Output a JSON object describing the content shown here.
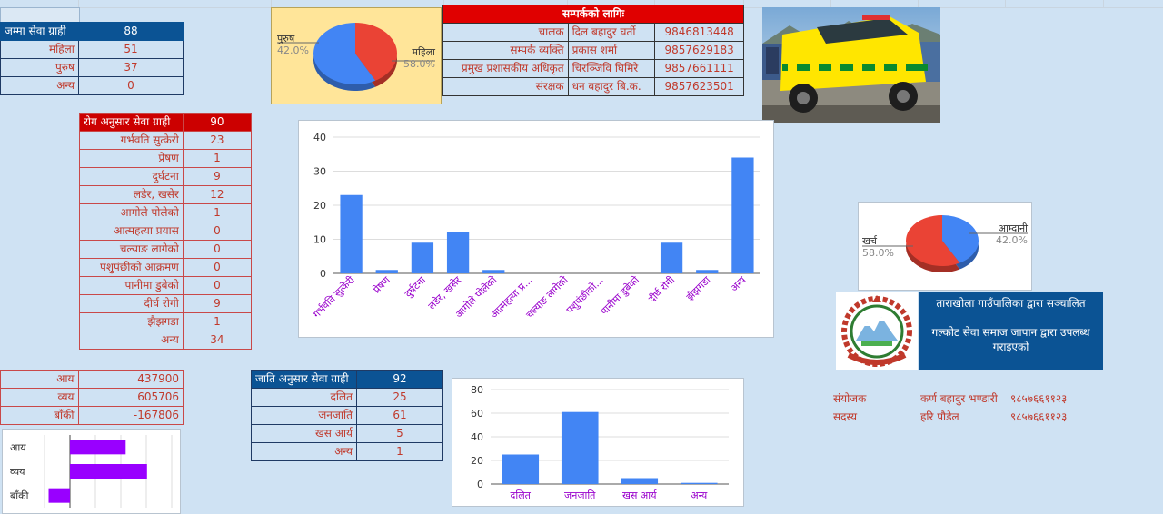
{
  "totals": {
    "rows": [
      {
        "label": "जम्मा सेवा ग्राही",
        "value": "88"
      },
      {
        "label": "महिला",
        "value": "51"
      },
      {
        "label": "पुरुष",
        "value": "37"
      },
      {
        "label": "अन्य",
        "value": "0"
      }
    ]
  },
  "gender_pie": {
    "slices": [
      {
        "label": "पुरुष",
        "pct": "42.0%",
        "value": 42.0,
        "color": "#ea4335"
      },
      {
        "label": "महिला",
        "pct": "58.0%",
        "value": 58.0,
        "color": "#4285f4"
      }
    ]
  },
  "contacts": {
    "title": "सम्पर्कको लागिः",
    "rows": [
      {
        "role": "चालक",
        "name": "दिल बहादुर घर्ती",
        "phone": "9846813448"
      },
      {
        "role": "सम्पर्क व्यक्ति",
        "name": "प्रकास शर्मा",
        "phone": "9857629183"
      },
      {
        "role": "प्रमुख प्रशासकीय अधिकृत",
        "name": "चिरञ्जिवि घिमिरे",
        "phone": "9857661111"
      },
      {
        "role": "संरक्षक",
        "name": "धन बहादुर बि.क.",
        "phone": "9857623501"
      }
    ]
  },
  "disease": {
    "header": {
      "label": "रोग अनुसार सेवा ग्राही",
      "value": "90"
    },
    "rows": [
      {
        "label": "गर्भवति सुत्केरी",
        "value": "23"
      },
      {
        "label": "प्रेषण",
        "value": "1"
      },
      {
        "label": "दुर्घटना",
        "value": "9"
      },
      {
        "label": "लडेर, खसेर",
        "value": "12"
      },
      {
        "label": "आगोले पोलेको",
        "value": "1"
      },
      {
        "label": "आत्महत्या प्रयास",
        "value": "0"
      },
      {
        "label": "चल्याङ लागेको",
        "value": "0"
      },
      {
        "label": "पशुपंछीको आक्रमण",
        "value": "0"
      },
      {
        "label": "पानीमा डुबेको",
        "value": "0"
      },
      {
        "label": "दीर्घ रोगी",
        "value": "9"
      },
      {
        "label": "झैझगडा",
        "value": "1"
      },
      {
        "label": "अन्य",
        "value": "34"
      }
    ]
  },
  "finance": {
    "rows": [
      {
        "label": "आय",
        "value": "437900"
      },
      {
        "label": "व्यय",
        "value": "605706"
      },
      {
        "label": "बाँकी",
        "value": "-167806"
      }
    ]
  },
  "caste": {
    "header": {
      "label": "जाति अनुसार सेवा ग्राही",
      "value": "92"
    },
    "rows": [
      {
        "label": "दलित",
        "value": "25"
      },
      {
        "label": "जनजाति",
        "value": "61"
      },
      {
        "label": "खस आर्य",
        "value": "5"
      },
      {
        "label": "अन्य",
        "value": "1"
      }
    ]
  },
  "budget_pie": {
    "slices": [
      {
        "label": "आम्दानी",
        "pct": "42.0%",
        "value": 42.0,
        "color": "#4285f4"
      },
      {
        "label": "खर्च",
        "pct": "58.0%",
        "value": 58.0,
        "color": "#ea4335"
      }
    ]
  },
  "org": {
    "line1": "ताराखोला गाउँपालिका द्वारा सञ्चालित",
    "line2": "गल्कोट सेवा समाज जापान द्वारा उपलब्ध गराइएको",
    "emblem_icon": "nepal-government-emblem"
  },
  "credits": [
    {
      "role": "संयोजक",
      "name": "कर्ण बहादुर भण्डारी",
      "phone": "९८५७६६११२३"
    },
    {
      "role": "सदस्य",
      "name": "हरि पौडेल",
      "phone": "९८५७६६११२३"
    }
  ],
  "chart_data": [
    {
      "type": "bar",
      "categories": [
        "गर्भवति सुत्केरी",
        "प्रेषण",
        "दुर्घटना",
        "लडेर, खसेर",
        "आगोले पोलेको",
        "आत्महत्या प्र...",
        "चल्याङ लागेको",
        "पशुपंछीको...",
        "पानीमा डुबेको",
        "दीर्घ रोगी",
        "झैझगडा",
        "अन्य"
      ],
      "values": [
        23,
        1,
        9,
        12,
        1,
        0,
        0,
        0,
        0,
        9,
        1,
        34
      ],
      "ylim": [
        0,
        40
      ],
      "yticks": [
        0,
        10,
        20,
        30,
        40
      ],
      "color": "#4285f4",
      "grid": true
    },
    {
      "type": "bar",
      "categories": [
        "दलित",
        "जनजाति",
        "खस आर्य",
        "अन्य"
      ],
      "values": [
        25,
        61,
        5,
        1
      ],
      "ylim": [
        0,
        80
      ],
      "yticks": [
        0,
        20,
        40,
        60,
        80
      ],
      "color": "#4285f4",
      "grid": true
    },
    {
      "type": "bar",
      "orientation": "horizontal",
      "categories": [
        "आय",
        "व्यय",
        "बाँकी"
      ],
      "values": [
        437900,
        605706,
        -167806
      ],
      "xlim": [
        -200000,
        800000
      ],
      "color": "#9900ff",
      "grid": true
    },
    {
      "type": "pie",
      "categories": [
        "पुरुष",
        "महिला"
      ],
      "values": [
        42.0,
        58.0
      ],
      "labels": [
        "42.0%",
        "58.0%"
      ]
    },
    {
      "type": "pie",
      "categories": [
        "आम्दानी",
        "खर्च"
      ],
      "values": [
        42.0,
        58.0
      ],
      "labels": [
        "42.0%",
        "58.0%"
      ]
    }
  ]
}
